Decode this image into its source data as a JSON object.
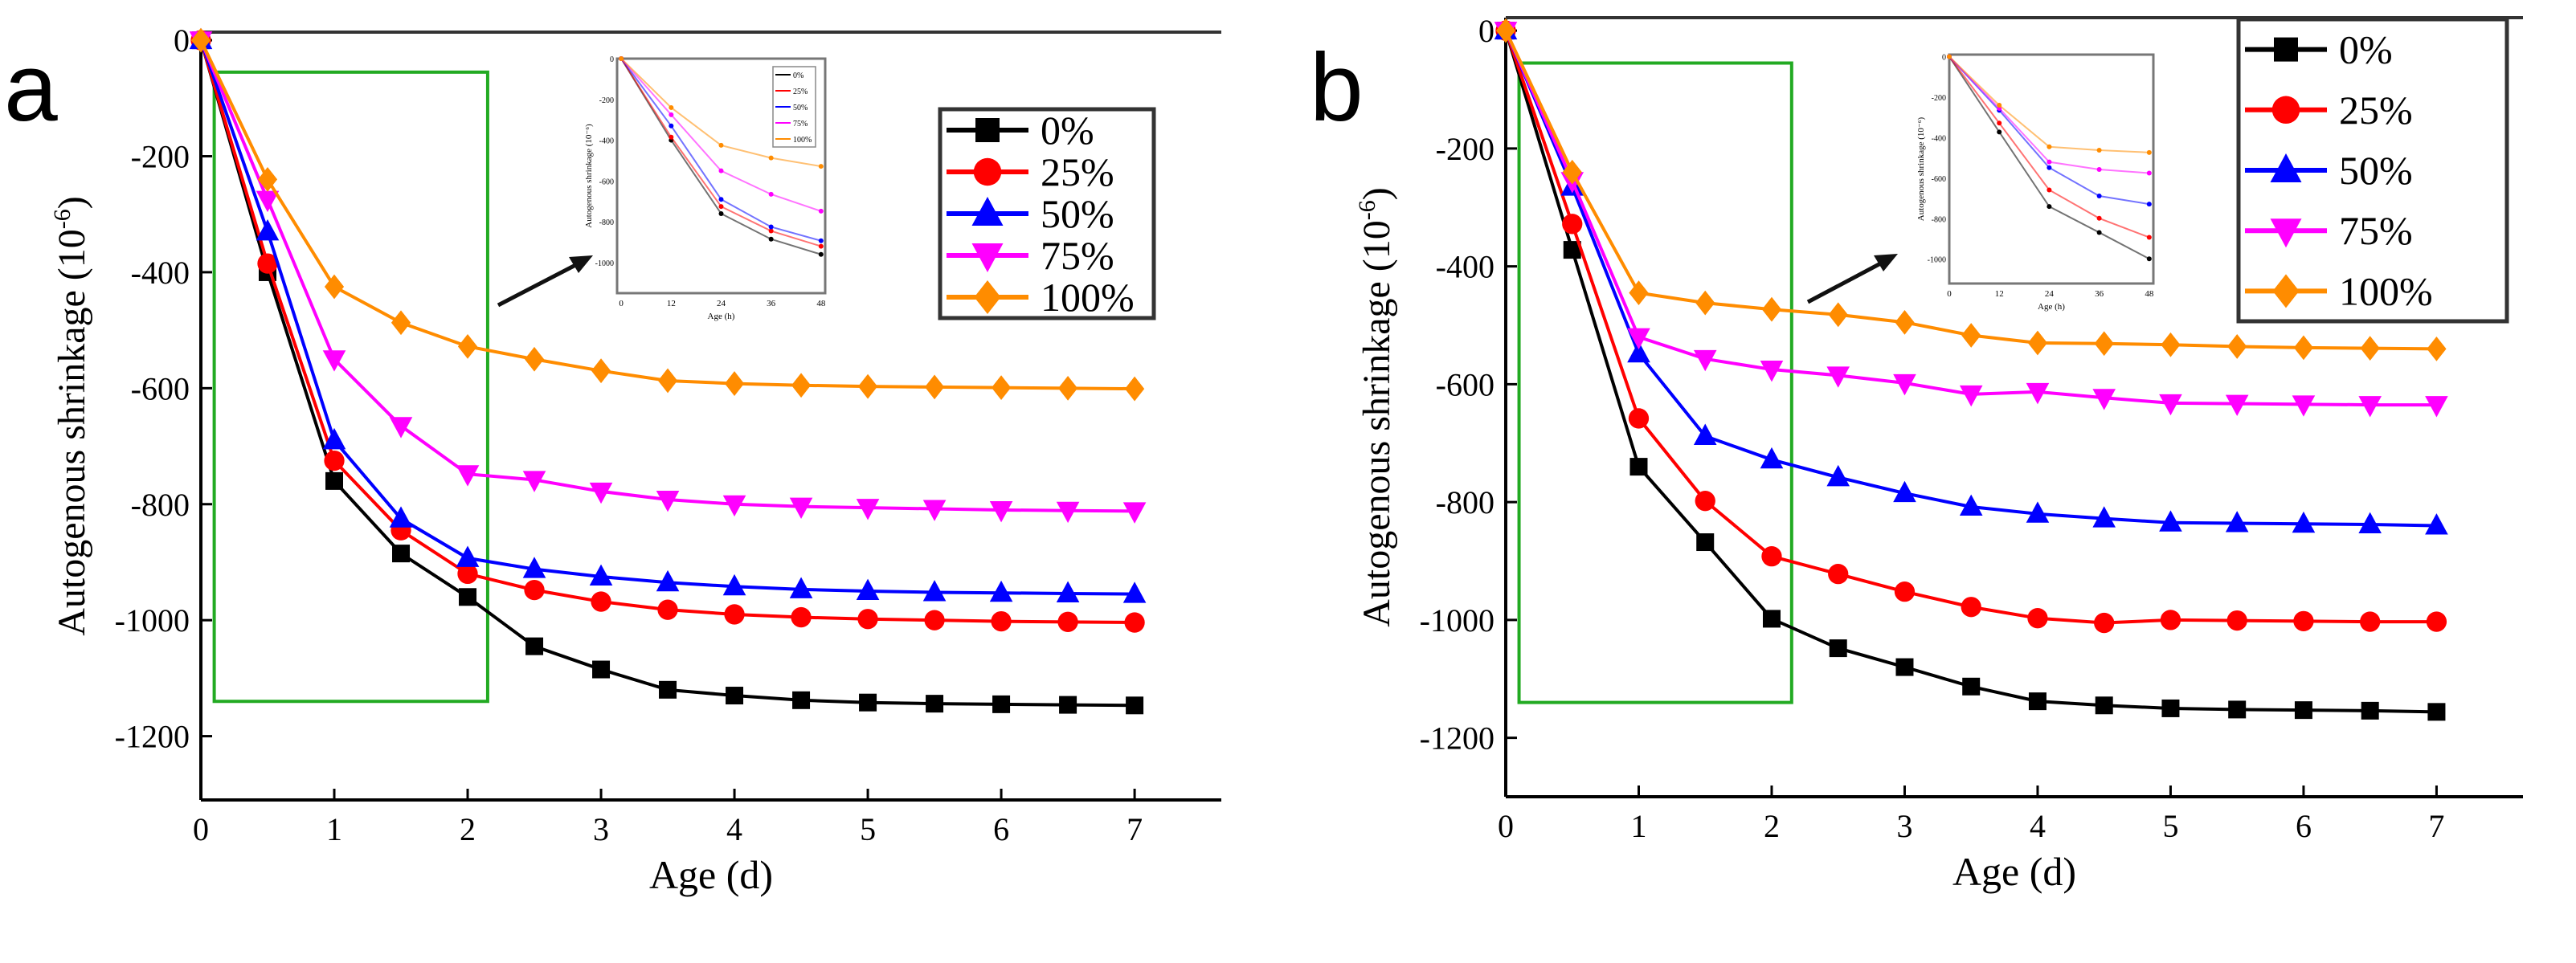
{
  "colors": {
    "0%": "#000000",
    "25%": "#ff0000",
    "50%": "#0000ff",
    "75%": "#ff00ff",
    "100%": "#ff8c00",
    "box": "#22aa22"
  },
  "chart_data": [
    {
      "type": "line",
      "panel_label": "a",
      "xlabel": "Age (d)",
      "ylabel": "Autogenous shrinkage (10",
      "ylabel_sup": "-6",
      "ylabel_end": ")",
      "xlim": [
        0,
        7.65
      ],
      "ylim": [
        -1310,
        14
      ],
      "xticks": [
        0,
        1,
        2,
        3,
        4,
        5,
        6,
        7
      ],
      "yticks": [
        0,
        -200,
        -400,
        -600,
        -800,
        -1000,
        -1200
      ],
      "x": [
        0,
        0.5,
        1,
        1.5,
        2,
        2.5,
        3,
        3.5,
        4,
        4.5,
        5,
        5.5,
        6,
        6.5,
        7
      ],
      "legend_position": "top-right",
      "highlight_box": {
        "x": [
          0.1,
          2.15
        ],
        "y": [
          -55,
          -1140
        ]
      },
      "series": [
        {
          "name": "0%",
          "marker": "square",
          "values": [
            0,
            -400,
            -760,
            -885,
            -960,
            -1045,
            -1085,
            -1120,
            -1130,
            -1138,
            -1142,
            -1144,
            -1145,
            -1146,
            -1147
          ]
        },
        {
          "name": "25%",
          "marker": "circle",
          "values": [
            0,
            -385,
            -725,
            -845,
            -920,
            -948,
            -968,
            -982,
            -990,
            -995,
            -998,
            -1000,
            -1002,
            -1003,
            -1004
          ]
        },
        {
          "name": "50%",
          "marker": "triangle-up",
          "values": [
            0,
            -330,
            -690,
            -825,
            -893,
            -912,
            -925,
            -935,
            -942,
            -947,
            -950,
            -952,
            -953,
            -954,
            -955
          ]
        },
        {
          "name": "75%",
          "marker": "triangle-down",
          "values": [
            0,
            -275,
            -550,
            -665,
            -748,
            -758,
            -778,
            -792,
            -800,
            -804,
            -806,
            -808,
            -810,
            -811,
            -812
          ]
        },
        {
          "name": "100%",
          "marker": "diamond",
          "values": [
            0,
            -240,
            -425,
            -487,
            -528,
            -550,
            -570,
            -587,
            -592,
            -595,
            -597,
            -598,
            -599,
            -600,
            -601
          ]
        }
      ],
      "inset": {
        "xlabel": "Age (h)",
        "ylabel": "Autogenous shrinkage (10⁻⁶)",
        "x": [
          0,
          12,
          24,
          36,
          48
        ],
        "xlim": [
          -1,
          49
        ],
        "ylim": [
          -1150,
          0
        ],
        "xticks": [
          0,
          12,
          24,
          36,
          48
        ],
        "yticks": [
          0,
          -200,
          -400,
          -600,
          -800,
          -1000
        ],
        "series": [
          {
            "name": "0%",
            "values": [
              0,
              -400,
              -760,
              -885,
              -960
            ]
          },
          {
            "name": "25%",
            "values": [
              0,
              -385,
              -725,
              -845,
              -920
            ]
          },
          {
            "name": "50%",
            "values": [
              0,
              -330,
              -690,
              -825,
              -893
            ]
          },
          {
            "name": "75%",
            "values": [
              0,
              -275,
              -550,
              -665,
              -748
            ]
          },
          {
            "name": "100%",
            "values": [
              0,
              -240,
              -425,
              -487,
              -528
            ]
          }
        ]
      }
    },
    {
      "type": "line",
      "panel_label": "b",
      "xlabel": "Age (d)",
      "ylabel": "Autogenous shrinkage (10",
      "ylabel_sup": "-6",
      "ylabel_end": ")",
      "xlim": [
        0,
        7.65
      ],
      "ylim": [
        -1300,
        22
      ],
      "xticks": [
        0,
        1,
        2,
        3,
        4,
        5,
        6,
        7
      ],
      "yticks": [
        0,
        -200,
        -400,
        -600,
        -800,
        -1000,
        -1200
      ],
      "x": [
        0,
        0.5,
        1,
        1.5,
        2,
        2.5,
        3,
        3.5,
        4,
        4.5,
        5,
        5.5,
        6,
        6.5,
        7
      ],
      "legend_position": "top-right",
      "highlight_box": {
        "x": [
          0.1,
          2.15
        ],
        "y": [
          -55,
          -1140
        ]
      },
      "series": [
        {
          "name": "0%",
          "marker": "square",
          "values": [
            0,
            -372,
            -740,
            -868,
            -998,
            -1048,
            -1080,
            -1113,
            -1138,
            -1145,
            -1150,
            -1152,
            -1153,
            -1154,
            -1156
          ]
        },
        {
          "name": "25%",
          "marker": "circle",
          "values": [
            0,
            -328,
            -658,
            -798,
            -892,
            -922,
            -952,
            -978,
            -997,
            -1005,
            -1000,
            -1001,
            -1002,
            -1003,
            -1003
          ]
        },
        {
          "name": "50%",
          "marker": "triangle-up",
          "values": [
            0,
            -265,
            -548,
            -688,
            -728,
            -758,
            -785,
            -808,
            -820,
            -828,
            -835,
            -836,
            -837,
            -838,
            -840
          ]
        },
        {
          "name": "75%",
          "marker": "triangle-down",
          "values": [
            0,
            -255,
            -520,
            -557,
            -575,
            -585,
            -598,
            -617,
            -613,
            -623,
            -632,
            -633,
            -634,
            -635,
            -635
          ]
        },
        {
          "name": "100%",
          "marker": "diamond",
          "values": [
            0,
            -240,
            -445,
            -462,
            -473,
            -482,
            -495,
            -517,
            -530,
            -531,
            -533,
            -536,
            -538,
            -539,
            -540
          ]
        }
      ],
      "inset": {
        "xlabel": "Age (h)",
        "ylabel": "Autogenous shrinkage (10⁻⁶)",
        "x": [
          0,
          12,
          24,
          36,
          48
        ],
        "xlim": [
          0,
          49
        ],
        "ylim": [
          -1120,
          10
        ],
        "xticks": [
          0,
          12,
          24,
          36,
          48
        ],
        "yticks": [
          0,
          -200,
          -400,
          -600,
          -800,
          -1000
        ],
        "series": [
          {
            "name": "0%",
            "values": [
              0,
              -372,
              -740,
              -868,
              -998
            ]
          },
          {
            "name": "25%",
            "values": [
              0,
              -328,
              -658,
              -798,
              -892
            ]
          },
          {
            "name": "50%",
            "values": [
              0,
              -265,
              -548,
              -688,
              -728
            ]
          },
          {
            "name": "75%",
            "values": [
              0,
              -255,
              -520,
              -557,
              -575
            ]
          },
          {
            "name": "100%",
            "values": [
              0,
              -240,
              -445,
              -462,
              -473
            ]
          }
        ]
      }
    }
  ]
}
